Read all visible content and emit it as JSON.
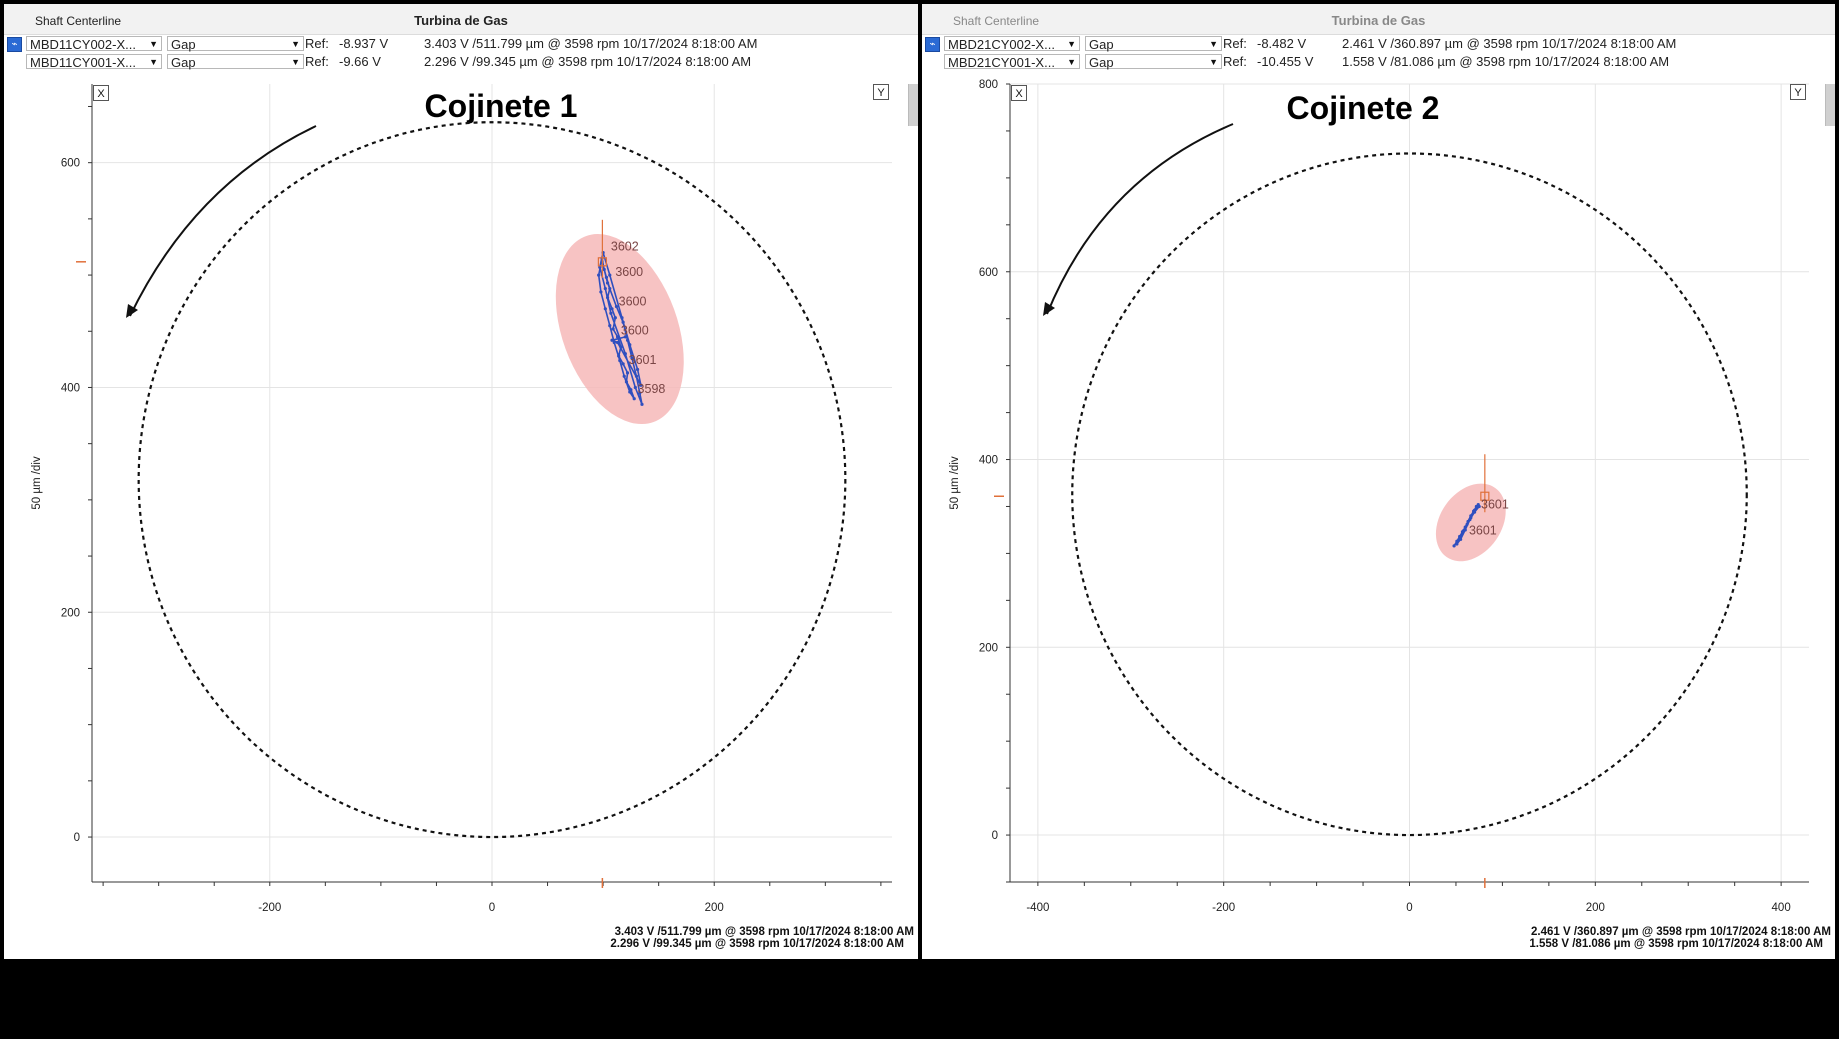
{
  "colors": {
    "orbit": "#2f4fbf",
    "ellipse": "#f6b8b8",
    "marker": "#e0703a",
    "grid": "#e4e4e4"
  },
  "icons": {
    "channel": "trend-icon",
    "dropdown": "chevron-down-icon",
    "close": "close-icon"
  },
  "panels": [
    {
      "window_title": "Shaft Centerline",
      "machine_title": "Turbina de Gas",
      "heading": "Cojinete 1",
      "x_button": "X",
      "y_button": "Y",
      "y_axis_label": "50 µm /div",
      "rows": [
        {
          "channel": "MBD11CY002-X...",
          "type": "Gap",
          "ref_label": "Ref:",
          "ref_value": "-8.937 V",
          "reading": "3.403 V /511.799 µm  @ 3598 rpm 10/17/2024 8:18:00 AM",
          "close": "x"
        },
        {
          "channel": "MBD11CY001-X...",
          "type": "Gap",
          "ref_label": "Ref:",
          "ref_value": "-9.66 V",
          "reading": "2.296 V /99.345 µm  @ 3598 rpm 10/17/2024 8:18:00 AM"
        }
      ],
      "footer": [
        "3.403 V /511.799 µm @ 3598 rpm 10/17/2024 8:18:00 AM",
        "2.296 V /99.345 µm @ 3598 rpm 10/17/2024 8:18:00 AM"
      ]
    },
    {
      "window_title": "Shaft Centerline",
      "machine_title": "Turbina de Gas",
      "heading": "Cojinete 2",
      "x_button": "X",
      "y_button": "Y",
      "y_axis_label": "50 µm /div",
      "rows": [
        {
          "channel": "MBD21CY002-X...",
          "type": "Gap",
          "ref_label": "Ref:",
          "ref_value": "-8.482 V",
          "reading": "2.461 V /360.897 µm  @ 3598 rpm 10/17/2024 8:18:00 AM",
          "close": "x"
        },
        {
          "channel": "MBD21CY001-X...",
          "type": "Gap",
          "ref_label": "Ref:",
          "ref_value": "-10.455 V",
          "reading": "1.558 V /81.086 µm  @ 3598 rpm 10/17/2024 8:18:00 AM"
        }
      ],
      "footer": [
        "2.461 V /360.897 µm @ 3598 rpm 10/17/2024 8:18:00 AM",
        "1.558 V /81.086 µm @ 3598 rpm 10/17/2024 8:18:00 AM"
      ]
    }
  ],
  "chart_data": [
    {
      "type": "scatter",
      "title": "Cojinete 1",
      "ylabel": "50 µm /div",
      "xlim": [
        -360,
        360
      ],
      "ylim": [
        -40,
        670
      ],
      "x_ticks": [
        -200,
        0,
        200
      ],
      "y_ticks": [
        0,
        200,
        400,
        600
      ],
      "grid": true,
      "clearance_circle": {
        "center": [
          0,
          318
        ],
        "radius": 318
      },
      "rotation_arrow": "counter-clockwise",
      "spread_ellipse": {
        "center": [
          115,
          452
        ],
        "rx": 52,
        "ry": 88,
        "tilt_deg": -20
      },
      "current_position": {
        "x": 99.345,
        "y": 511.799
      },
      "orbit": [
        {
          "x": 99,
          "y": 512
        },
        {
          "x": 103,
          "y": 498
        },
        {
          "x": 106,
          "y": 488
        },
        {
          "x": 104,
          "y": 480
        },
        {
          "x": 108,
          "y": 470
        },
        {
          "x": 111,
          "y": 462
        },
        {
          "x": 109,
          "y": 452
        },
        {
          "x": 113,
          "y": 445
        },
        {
          "x": 116,
          "y": 436
        },
        {
          "x": 114,
          "y": 428
        },
        {
          "x": 118,
          "y": 421
        },
        {
          "x": 122,
          "y": 413
        },
        {
          "x": 121,
          "y": 405
        },
        {
          "x": 125,
          "y": 398
        },
        {
          "x": 128,
          "y": 390
        },
        {
          "x": 124,
          "y": 396
        },
        {
          "x": 119,
          "y": 410
        },
        {
          "x": 115,
          "y": 424
        },
        {
          "x": 110,
          "y": 440
        },
        {
          "x": 106,
          "y": 455
        },
        {
          "x": 102,
          "y": 470
        },
        {
          "x": 98,
          "y": 485
        },
        {
          "x": 96,
          "y": 500
        },
        {
          "x": 99,
          "y": 515
        },
        {
          "x": 101,
          "y": 505
        },
        {
          "x": 104,
          "y": 493
        },
        {
          "x": 112,
          "y": 472
        },
        {
          "x": 118,
          "y": 458
        },
        {
          "x": 122,
          "y": 442
        },
        {
          "x": 126,
          "y": 426
        },
        {
          "x": 130,
          "y": 410
        },
        {
          "x": 133,
          "y": 395
        },
        {
          "x": 135,
          "y": 385
        },
        {
          "x": 129,
          "y": 400
        },
        {
          "x": 120,
          "y": 430
        },
        {
          "x": 107,
          "y": 466
        },
        {
          "x": 102,
          "y": 488
        },
        {
          "x": 97,
          "y": 507
        },
        {
          "x": 100,
          "y": 520
        },
        {
          "x": 106,
          "y": 500
        },
        {
          "x": 117,
          "y": 462
        },
        {
          "x": 124,
          "y": 438
        },
        {
          "x": 131,
          "y": 416
        },
        {
          "x": 134,
          "y": 402
        },
        {
          "x": 113,
          "y": 440
        },
        {
          "x": 108,
          "y": 442
        },
        {
          "x": 120,
          "y": 445
        }
      ],
      "annotations": [
        {
          "text": "3602",
          "x": 107,
          "y": 522
        },
        {
          "text": "3600",
          "x": 111,
          "y": 499
        },
        {
          "text": "3600",
          "x": 114,
          "y": 473
        },
        {
          "text": "3600",
          "x": 116,
          "y": 447
        },
        {
          "text": "3601",
          "x": 123,
          "y": 421
        },
        {
          "text": "3598",
          "x": 131,
          "y": 395
        }
      ]
    },
    {
      "type": "scatter",
      "title": "Cojinete 2",
      "ylabel": "50 µm /div",
      "xlim": [
        -430,
        430
      ],
      "ylim": [
        -50,
        800
      ],
      "x_ticks": [
        -400,
        -200,
        0,
        200,
        400
      ],
      "y_ticks": [
        0,
        200,
        400,
        600,
        800
      ],
      "grid": true,
      "clearance_circle": {
        "center": [
          0,
          363
        ],
        "radius": 363
      },
      "rotation_arrow": "counter-clockwise",
      "spread_ellipse": {
        "center": [
          66,
          333
        ],
        "rx": 33,
        "ry": 45,
        "tilt_deg": 35
      },
      "current_position": {
        "x": 81.086,
        "y": 360.897
      },
      "orbit": [
        {
          "x": 48,
          "y": 308
        },
        {
          "x": 51,
          "y": 313
        },
        {
          "x": 54,
          "y": 318
        },
        {
          "x": 57,
          "y": 323
        },
        {
          "x": 60,
          "y": 328
        },
        {
          "x": 63,
          "y": 334
        },
        {
          "x": 66,
          "y": 340
        },
        {
          "x": 69,
          "y": 345
        },
        {
          "x": 72,
          "y": 350
        },
        {
          "x": 74,
          "y": 352
        },
        {
          "x": 70,
          "y": 346
        },
        {
          "x": 66,
          "y": 338
        },
        {
          "x": 62,
          "y": 331
        },
        {
          "x": 58,
          "y": 324
        },
        {
          "x": 54,
          "y": 316
        },
        {
          "x": 51,
          "y": 310
        },
        {
          "x": 55,
          "y": 315
        },
        {
          "x": 60,
          "y": 325
        },
        {
          "x": 65,
          "y": 336
        },
        {
          "x": 70,
          "y": 344
        },
        {
          "x": 75,
          "y": 350
        }
      ],
      "annotations": [
        {
          "text": "3601",
          "x": 77,
          "y": 348
        },
        {
          "text": "3601",
          "x": 64,
          "y": 320
        }
      ]
    }
  ]
}
